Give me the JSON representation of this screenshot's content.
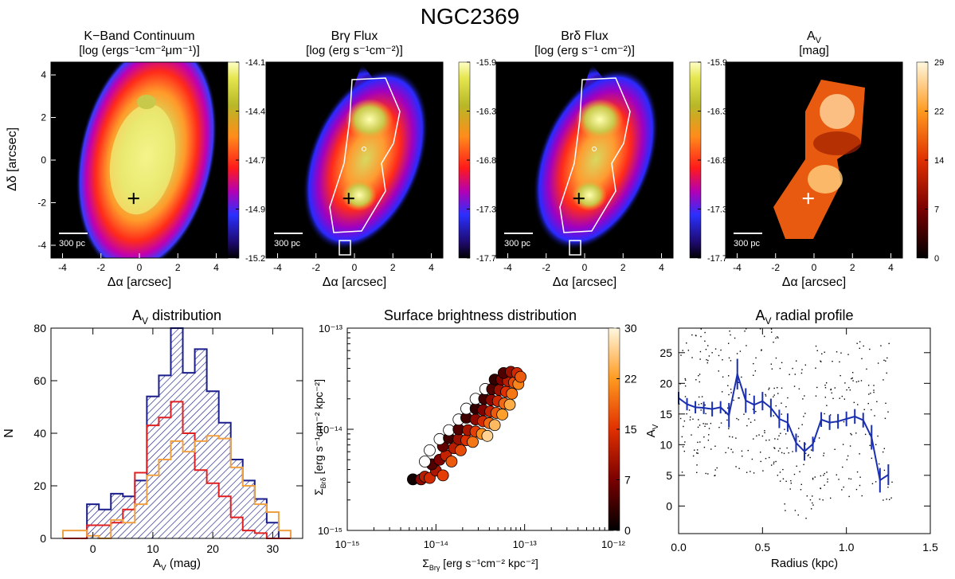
{
  "figure": {
    "title": "NGC2369"
  },
  "maps": [
    {
      "title1": "K−Band Continuum",
      "title2": "[log (ergs⁻¹cm⁻²μm⁻¹)]",
      "cbar_ticks": [
        "-14.1",
        "-14.4",
        "-14.7",
        "-14.9",
        "-15.2"
      ],
      "cmap": "rainbow",
      "scalebar": "300 pc",
      "xlabel": "Δα [arcsec]",
      "ylabel": "Δδ [arcsec]",
      "xticks": [
        "-4",
        "-2",
        "0",
        "2",
        "4"
      ],
      "yticks": [
        "4",
        "2",
        "0",
        "-2",
        "-4"
      ],
      "contour": false,
      "marker_color": "#000000"
    },
    {
      "title1": "Brγ Flux",
      "title2": "[log (erg s⁻¹cm⁻²)]",
      "cbar_ticks": [
        "-15.9",
        "-16.3",
        "-16.8",
        "-17.3",
        "-17.7"
      ],
      "cmap": "rainbow",
      "scalebar": "300 pc",
      "xlabel": "Δα [arcsec]",
      "xticks": [
        "-4",
        "-2",
        "0",
        "2",
        "4"
      ],
      "contour": true,
      "marker_color": "#000000"
    },
    {
      "title1": "Brδ Flux",
      "title2": "[log (erg s⁻¹ cm⁻²)]",
      "cbar_ticks": [
        "-15.9",
        "-16.3",
        "-16.8",
        "-17.3",
        "-17.7"
      ],
      "cmap": "rainbow",
      "scalebar": "300 pc",
      "xlabel": "Δα [arcsec]",
      "xticks": [
        "-4",
        "-2",
        "0",
        "2",
        "4"
      ],
      "contour": true,
      "marker_color": "#000000"
    },
    {
      "title1": "A",
      "title1_sub": "V",
      "title2": "[mag]",
      "cbar_ticks": [
        "29",
        "22",
        "14",
        "7",
        "0"
      ],
      "cmap": "heat",
      "scalebar": "300 pc",
      "xlabel": "Δα [arcsec]",
      "xticks": [
        "-4",
        "-2",
        "0",
        "2",
        "4"
      ],
      "contour": false,
      "marker_color": "#ffffff"
    }
  ],
  "panels": {
    "hist": {
      "title": "A",
      "title_sub": "V",
      "title_rest": " distribution",
      "xlabel": "A",
      "xlabel_sub": "V",
      "xlabel_rest": " (mag)",
      "ylabel": "N"
    },
    "scatter": {
      "title": "Surface brightness distribution",
      "ylabel": "Σ",
      "ylabel_sub": "Brδ",
      "ylabel_rest": " [erg s⁻¹cm⁻² kpc⁻²]",
      "xlabel": "Σ",
      "xlabel_sub": "Brγ",
      "xlabel_rest": " [erg s⁻¹cm⁻² kpc⁻²]",
      "xtick_labels": [
        "10⁻¹⁵",
        "10⁻¹⁴",
        "10⁻¹³",
        "10⁻¹²"
      ],
      "ytick_labels": [
        "10⁻¹³",
        "10⁻¹⁴",
        "10⁻¹⁵"
      ],
      "cbar_ticks": [
        "30",
        "22",
        "15",
        "7",
        "0"
      ]
    },
    "radial": {
      "title": "A",
      "title_sub": "V",
      "title_rest": " radial profile",
      "xlabel": "Radius (kpc)",
      "ylabel": "A",
      "ylabel_sub": "V"
    }
  },
  "chart_data": [
    {
      "type": "bar",
      "name": "A_V distribution histogram",
      "xlim": [
        -7,
        35
      ],
      "ylim": [
        0,
        80
      ],
      "xticks": [
        0,
        10,
        20,
        30
      ],
      "yticks": [
        0,
        20,
        40,
        60,
        80
      ],
      "bin_edges": [
        -5,
        -3,
        -1,
        1,
        3,
        5,
        7,
        9,
        11,
        13,
        15,
        17,
        19,
        21,
        23,
        25,
        27,
        29,
        31,
        33
      ],
      "series": [
        {
          "color": "#1a1f8c",
          "hatched": true,
          "values": [
            0,
            0,
            13,
            11,
            17,
            16,
            22,
            54,
            62,
            80,
            63,
            72,
            56,
            44,
            30,
            22,
            15,
            6,
            0
          ]
        },
        {
          "color": "#e02020",
          "values": [
            0,
            0,
            5,
            5,
            6,
            11,
            25,
            43,
            46,
            52,
            40,
            26,
            21,
            16,
            8,
            3,
            2,
            0,
            0
          ]
        },
        {
          "color": "#f0a040",
          "values": [
            3,
            3,
            1,
            0,
            7,
            6,
            13,
            24,
            30,
            37,
            33,
            37,
            39,
            38,
            27,
            20,
            13,
            10,
            3
          ]
        }
      ]
    },
    {
      "type": "scatter",
      "name": "Surface brightness distribution",
      "xscale": "log",
      "yscale": "log",
      "xlim": [
        1e-15,
        1e-12
      ],
      "ylim": [
        1e-15,
        1e-13
      ],
      "colorbar_range": [
        0,
        30
      ],
      "points": [
        {
          "x": 5.5e-15,
          "y": 3.2e-15,
          "c": 1
        },
        {
          "x": 6.8e-15,
          "y": 3.2e-15,
          "c": 9
        },
        {
          "x": 7.5e-15,
          "y": 3.4e-15,
          "c": 12
        },
        {
          "x": 8.5e-15,
          "y": 3.3e-15,
          "c": 14
        },
        {
          "x": 1e-14,
          "y": 3.9e-15,
          "c": 11
        },
        {
          "x": 1.2e-14,
          "y": 3.5e-15,
          "c": 16
        },
        {
          "x": 9e-15,
          "y": 4.5e-15,
          "c": 5
        },
        {
          "x": 1.1e-14,
          "y": 5e-15,
          "c": 8
        },
        {
          "x": 7.5e-15,
          "y": 4.8e-15,
          "c": -1
        },
        {
          "x": 8.5e-15,
          "y": 6.2e-15,
          "c": -1
        },
        {
          "x": 1.3e-14,
          "y": 5.5e-15,
          "c": 13
        },
        {
          "x": 1.5e-14,
          "y": 4.8e-15,
          "c": 18
        },
        {
          "x": 1.2e-14,
          "y": 6.8e-15,
          "c": 6
        },
        {
          "x": 1.6e-14,
          "y": 6.5e-15,
          "c": 12
        },
        {
          "x": 1.9e-14,
          "y": 6.2e-15,
          "c": 17
        },
        {
          "x": 1.1e-14,
          "y": 8e-15,
          "c": -1
        },
        {
          "x": 1.4e-14,
          "y": 8.2e-15,
          "c": 4
        },
        {
          "x": 1.8e-14,
          "y": 8e-15,
          "c": 10
        },
        {
          "x": 2.2e-14,
          "y": 7.8e-15,
          "c": 15
        },
        {
          "x": 2.6e-14,
          "y": 7.5e-15,
          "c": 20
        },
        {
          "x": 1.4e-14,
          "y": 9.8e-15,
          "c": -1
        },
        {
          "x": 1.8e-14,
          "y": 1e-14,
          "c": 5
        },
        {
          "x": 2.3e-14,
          "y": 9.8e-15,
          "c": 11
        },
        {
          "x": 2.8e-14,
          "y": 9.5e-15,
          "c": 16
        },
        {
          "x": 3.3e-14,
          "y": 9e-15,
          "c": 22
        },
        {
          "x": 3.8e-14,
          "y": 8.6e-15,
          "c": 27
        },
        {
          "x": 1.8e-14,
          "y": 1.25e-14,
          "c": -1
        },
        {
          "x": 2.2e-14,
          "y": 1.3e-14,
          "c": 4
        },
        {
          "x": 2.8e-14,
          "y": 1.25e-14,
          "c": 9
        },
        {
          "x": 3.4e-14,
          "y": 1.2e-14,
          "c": 14
        },
        {
          "x": 4e-14,
          "y": 1.15e-14,
          "c": 19
        },
        {
          "x": 4.6e-14,
          "y": 1.1e-14,
          "c": 25
        },
        {
          "x": 2.2e-14,
          "y": 1.6e-14,
          "c": -1
        },
        {
          "x": 2.8e-14,
          "y": 1.6e-14,
          "c": 3
        },
        {
          "x": 3.4e-14,
          "y": 1.55e-14,
          "c": 8
        },
        {
          "x": 4.1e-14,
          "y": 1.5e-14,
          "c": 13
        },
        {
          "x": 4.8e-14,
          "y": 1.45e-14,
          "c": 18
        },
        {
          "x": 5.6e-14,
          "y": 1.4e-14,
          "c": 23
        },
        {
          "x": 2.8e-14,
          "y": 2e-14,
          "c": -1
        },
        {
          "x": 3.5e-14,
          "y": 2e-14,
          "c": 4
        },
        {
          "x": 4.2e-14,
          "y": 1.95e-14,
          "c": 9
        },
        {
          "x": 5e-14,
          "y": 1.9e-14,
          "c": 14
        },
        {
          "x": 5.9e-14,
          "y": 1.8e-14,
          "c": 19
        },
        {
          "x": 6.8e-14,
          "y": 1.75e-14,
          "c": 24
        },
        {
          "x": 3.6e-14,
          "y": 2.5e-14,
          "c": -1
        },
        {
          "x": 4.3e-14,
          "y": 2.5e-14,
          "c": 5
        },
        {
          "x": 5.2e-14,
          "y": 2.45e-14,
          "c": 10
        },
        {
          "x": 6.2e-14,
          "y": 2.35e-14,
          "c": 15
        },
        {
          "x": 7.2e-14,
          "y": 2.25e-14,
          "c": 20
        },
        {
          "x": 4.6e-14,
          "y": 3.1e-14,
          "c": 3
        },
        {
          "x": 5.5e-14,
          "y": 3.1e-14,
          "c": 8
        },
        {
          "x": 6.5e-14,
          "y": 3e-14,
          "c": 12
        },
        {
          "x": 7.6e-14,
          "y": 2.9e-14,
          "c": 17
        },
        {
          "x": 8.5e-14,
          "y": 2.8e-14,
          "c": 21
        },
        {
          "x": 5.8e-14,
          "y": 3.6e-14,
          "c": 5
        },
        {
          "x": 7e-14,
          "y": 3.7e-14,
          "c": 10
        },
        {
          "x": 8.2e-14,
          "y": 3.6e-14,
          "c": 14
        },
        {
          "x": 9e-14,
          "y": 3.3e-14,
          "c": 18
        }
      ]
    },
    {
      "type": "line",
      "name": "A_V radial profile",
      "xlim": [
        0,
        1.5
      ],
      "ylim": [
        -4.5,
        29
      ],
      "xticks": [
        0.0,
        0.5,
        1.0,
        1.5
      ],
      "yticks": [
        0,
        5,
        10,
        15,
        20,
        25
      ],
      "series": [
        {
          "color": "#1a2fb0",
          "x": [
            0.0,
            0.05,
            0.1,
            0.15,
            0.2,
            0.25,
            0.3,
            0.35,
            0.4,
            0.45,
            0.5,
            0.55,
            0.6,
            0.65,
            0.7,
            0.75,
            0.8,
            0.85,
            0.9,
            0.95,
            1.0,
            1.05,
            1.1,
            1.15,
            1.2,
            1.25
          ],
          "y": [
            17.6,
            16.6,
            16.1,
            16.0,
            15.8,
            16.1,
            14.8,
            21.5,
            17.2,
            16.5,
            17.1,
            16.0,
            14.2,
            13.6,
            10.3,
            8.9,
            10.1,
            14.1,
            13.6,
            13.8,
            14.2,
            14.6,
            14.0,
            11.2,
            4.2,
            5.1
          ],
          "err": [
            1.0,
            1.0,
            1.0,
            1.0,
            1.2,
            1.0,
            2.0,
            2.5,
            2.0,
            1.5,
            1.5,
            1.5,
            1.5,
            1.5,
            1.5,
            1.5,
            1.2,
            1.2,
            1.2,
            1.2,
            1.2,
            1.2,
            1.2,
            2.0,
            2.0,
            1.7
          ]
        }
      ]
    }
  ]
}
